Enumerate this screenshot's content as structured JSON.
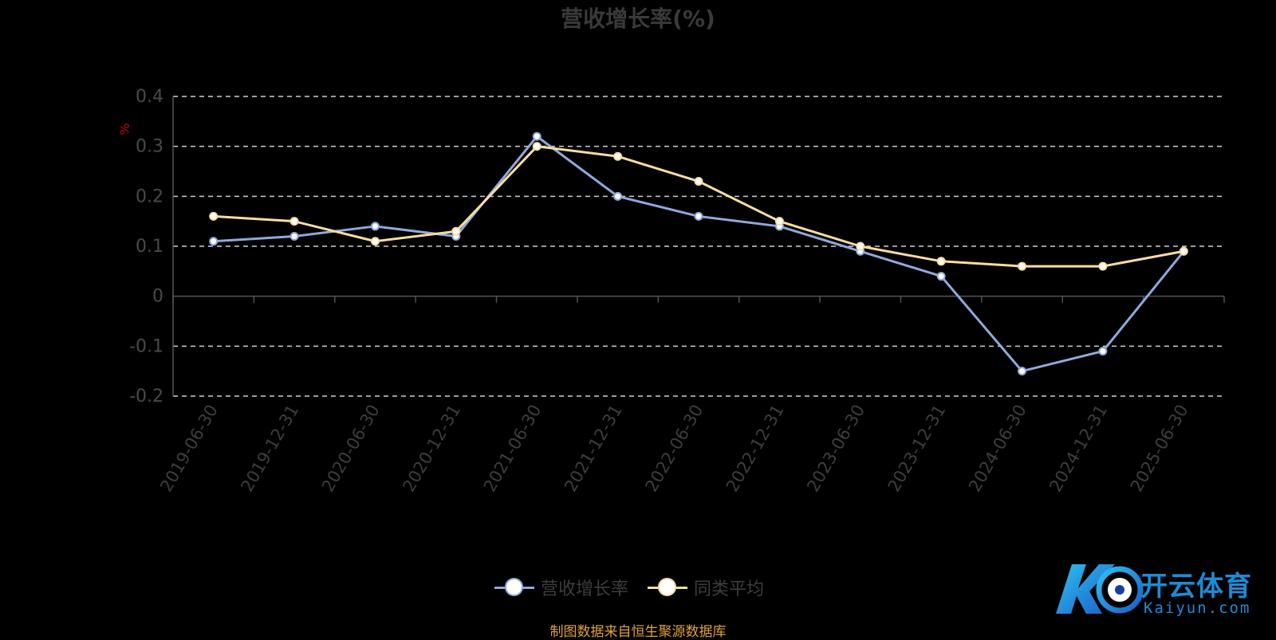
{
  "chart_data": {
    "type": "line",
    "title": "营收增长率(%)",
    "ylabel": "%",
    "xlabel": "",
    "ylim": [
      -0.2,
      0.4
    ],
    "yticks": [
      -0.2,
      -0.1,
      0,
      0.1,
      0.2,
      0.3,
      0.4
    ],
    "ytick_labels": [
      "-0.2",
      "-0.1",
      "0",
      "0.1",
      "0.2",
      "0.3",
      "0.4"
    ],
    "grid": true,
    "legend_position": "bottom-center",
    "categories": [
      "2019-06-30",
      "2019-12-31",
      "2020-06-30",
      "2020-12-31",
      "2021-06-30",
      "2021-12-31",
      "2022-06-30",
      "2022-12-31",
      "2023-06-30",
      "2023-12-31",
      "2024-06-30",
      "2024-12-31",
      "2025-06-30"
    ],
    "series": [
      {
        "name": "营收增长率",
        "color": "#8fa9dc",
        "values": [
          0.11,
          0.12,
          0.14,
          0.12,
          0.32,
          0.2,
          0.16,
          0.14,
          0.09,
          0.04,
          -0.15,
          -0.11,
          0.09
        ]
      },
      {
        "name": "同类平均",
        "color": "#fbdca0",
        "values": [
          0.16,
          0.15,
          0.11,
          0.13,
          0.3,
          0.28,
          0.23,
          0.15,
          0.1,
          0.07,
          0.06,
          0.06,
          0.09
        ]
      }
    ]
  },
  "legend": {
    "items": [
      "营收增长率",
      "同类平均"
    ]
  },
  "source": "制图数据来自恒生聚源数据库",
  "logo": {
    "name": "开云体育",
    "url": "Kaiyun.com"
  },
  "colors": {
    "background": "#000000",
    "axis": "#555555",
    "grid": "#cccccc",
    "source": "#e0a23a",
    "logo": "#1e8bd6"
  }
}
